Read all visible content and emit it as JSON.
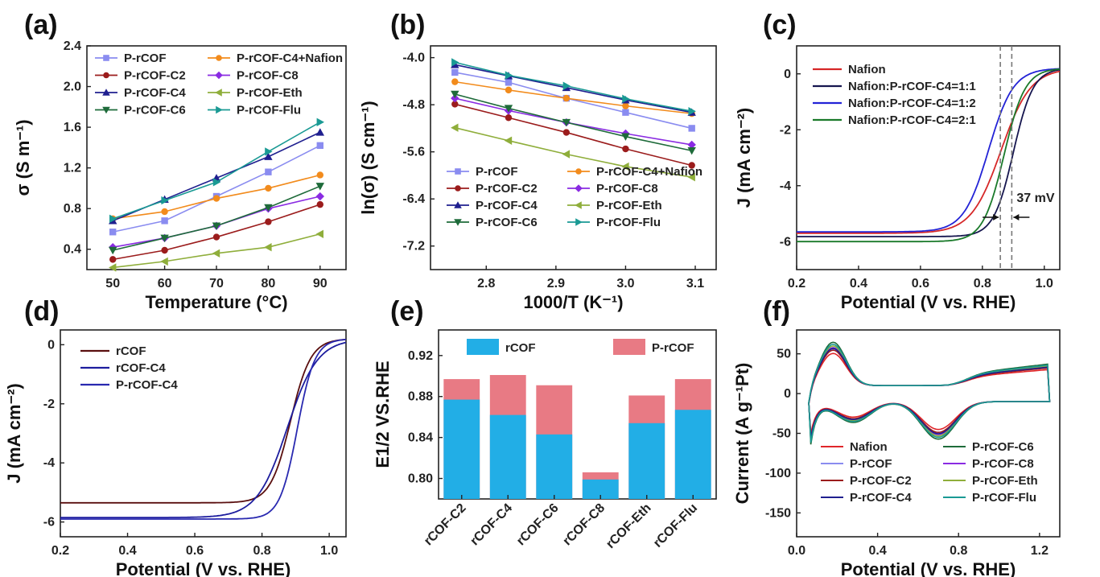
{
  "chart_data": [
    {
      "panel": "(a)",
      "type": "line",
      "xlabel": "Temperature (°C)",
      "ylabel": "σ (S m⁻¹)",
      "xlim": [
        45,
        95
      ],
      "ylim": [
        0.2,
        2.4
      ],
      "xticks": [
        50,
        60,
        70,
        80,
        90
      ],
      "yticks": [
        0.4,
        0.8,
        1.2,
        1.6,
        2.0,
        2.4
      ],
      "legend_columns": 2,
      "legend_position": "top-left",
      "x": [
        50,
        60,
        70,
        80,
        90
      ],
      "series": [
        {
          "name": "P-rCOF",
          "color": "#8a8cf0",
          "marker": "square",
          "values": [
            0.57,
            0.68,
            0.92,
            1.16,
            1.42
          ]
        },
        {
          "name": "P-rCOF-C4+Nafion",
          "color": "#f28b1c",
          "marker": "circle",
          "values": [
            0.7,
            0.77,
            0.9,
            1.0,
            1.13
          ]
        },
        {
          "name": "P-rCOF-C2",
          "color": "#9b1c1c",
          "marker": "circle",
          "values": [
            0.3,
            0.39,
            0.52,
            0.67,
            0.84
          ]
        },
        {
          "name": "P-rCOF-C8",
          "color": "#8a2be2",
          "marker": "diamond",
          "values": [
            0.42,
            0.51,
            0.63,
            0.8,
            0.92
          ]
        },
        {
          "name": "P-rCOF-C4",
          "color": "#1f1f8f",
          "marker": "triangle-up",
          "values": [
            0.68,
            0.89,
            1.1,
            1.31,
            1.55
          ]
        },
        {
          "name": "P-rCOF-Eth",
          "color": "#8fae3b",
          "marker": "triangle-left",
          "values": [
            0.22,
            0.28,
            0.36,
            0.42,
            0.55
          ]
        },
        {
          "name": "P-rCOF-C6",
          "color": "#1e6b3a",
          "marker": "triangle-down",
          "values": [
            0.39,
            0.51,
            0.63,
            0.81,
            1.02
          ]
        },
        {
          "name": "P-rCOF-Flu",
          "color": "#1a9a94",
          "marker": "triangle-right",
          "values": [
            0.7,
            0.88,
            1.06,
            1.36,
            1.65
          ]
        }
      ]
    },
    {
      "panel": "(b)",
      "type": "line",
      "xlabel": "1000/T (K⁻¹)",
      "ylabel": "ln(σ) (S cm⁻¹)",
      "xlim": [
        2.72,
        3.13
      ],
      "ylim": [
        -7.6,
        -3.8
      ],
      "xticks": [
        2.8,
        2.9,
        3.0,
        3.1
      ],
      "yticks": [
        -7.2,
        -6.4,
        -5.6,
        -4.8,
        -4.0
      ],
      "legend_columns": 2,
      "legend_position": "bottom",
      "x": [
        2.755,
        2.832,
        2.915,
        3.0,
        3.095
      ],
      "series": [
        {
          "name": "P-rCOF",
          "color": "#8a8cf0",
          "marker": "square",
          "values": [
            -4.25,
            -4.42,
            -4.69,
            -4.93,
            -5.2
          ]
        },
        {
          "name": "P-rCOF-C4+Nafion",
          "color": "#f28b1c",
          "marker": "circle",
          "values": [
            -4.41,
            -4.55,
            -4.69,
            -4.82,
            -4.95
          ]
        },
        {
          "name": "P-rCOF-C2",
          "color": "#9b1c1c",
          "marker": "circle",
          "values": [
            -4.79,
            -5.02,
            -5.27,
            -5.55,
            -5.83
          ]
        },
        {
          "name": "P-rCOF-C8",
          "color": "#8a2be2",
          "marker": "diamond",
          "values": [
            -4.69,
            -4.9,
            -5.1,
            -5.29,
            -5.48
          ]
        },
        {
          "name": "P-rCOF-C4",
          "color": "#1f1f8f",
          "marker": "triangle-up",
          "values": [
            -4.12,
            -4.31,
            -4.51,
            -4.72,
            -4.93
          ]
        },
        {
          "name": "P-rCOF-Eth",
          "color": "#8fae3b",
          "marker": "triangle-left",
          "values": [
            -5.19,
            -5.41,
            -5.64,
            -5.85,
            -6.03
          ]
        },
        {
          "name": "P-rCOF-C6",
          "color": "#1e6b3a",
          "marker": "triangle-down",
          "values": [
            -4.62,
            -4.86,
            -5.1,
            -5.34,
            -5.58
          ]
        },
        {
          "name": "P-rCOF-Flu",
          "color": "#1a9a94",
          "marker": "triangle-right",
          "values": [
            -4.08,
            -4.3,
            -4.48,
            -4.7,
            -4.91
          ]
        }
      ]
    },
    {
      "panel": "(c)",
      "type": "line",
      "xlabel": "Potential (V vs. RHE)",
      "ylabel": "J (mA cm⁻²)",
      "xlim": [
        0.2,
        1.05
      ],
      "ylim": [
        -7,
        1
      ],
      "xticks": [
        0.2,
        0.4,
        0.6,
        0.8,
        1.0
      ],
      "yticks": [
        -6,
        -4,
        -2,
        0
      ],
      "legend_position": "top-left",
      "annotation": "37 mV",
      "reference_lines_x": [
        0.858,
        0.895
      ],
      "series": [
        {
          "name": "Nafion",
          "color": "#d62728",
          "limiting": -5.9,
          "halfwave": 0.86,
          "width": 0.048
        },
        {
          "name": "Nafion:P-rCOF-C4=1:1",
          "color": "#16164f",
          "limiting": -6.02,
          "halfwave": 0.9,
          "width": 0.032
        },
        {
          "name": "Nafion:P-rCOF-C4=1:2",
          "color": "#2323d6",
          "limiting": -5.85,
          "halfwave": 0.82,
          "width": 0.04
        },
        {
          "name": "Nafion:P-rCOF-C4=2:1",
          "color": "#1a7a2a",
          "limiting": -6.2,
          "halfwave": 0.87,
          "width": 0.034
        }
      ]
    },
    {
      "panel": "(d)",
      "type": "line",
      "xlabel": "Potential (V vs. RHE)",
      "ylabel": "J (mA cm⁻²)",
      "xlim": [
        0.2,
        1.05
      ],
      "ylim": [
        -6.5,
        0.5
      ],
      "xticks": [
        0.2,
        0.4,
        0.6,
        0.8,
        1.0
      ],
      "yticks": [
        -6,
        -4,
        -2,
        0
      ],
      "legend_position": "top-left",
      "series": [
        {
          "name": "rCOF",
          "color": "#5a0f0f",
          "limiting": -5.55,
          "halfwave": 0.885,
          "width": 0.03
        },
        {
          "name": "rCOF-C4",
          "color": "#1d1d9e",
          "limiting": -6.05,
          "halfwave": 0.875,
          "width": 0.045
        },
        {
          "name": "P-rCOF-C4",
          "color": "#2929b0",
          "limiting": -6.1,
          "halfwave": 0.905,
          "width": 0.026
        }
      ]
    },
    {
      "panel": "(e)",
      "type": "bar",
      "ylabel": "E1/2 VS.RHE",
      "ylim": [
        0.78,
        0.945
      ],
      "yticks": [
        0.8,
        0.84,
        0.88,
        0.92
      ],
      "legend_position": "top",
      "categories": [
        "rCOF-C2",
        "rCOF-C4",
        "rCOF-C6",
        "rCOF-C8",
        "rCOF-Eth",
        "rCOF-Flu"
      ],
      "series": [
        {
          "name": "rCOF",
          "color": "#22aee6",
          "values": [
            0.877,
            0.862,
            0.843,
            0.799,
            0.854,
            0.867
          ]
        },
        {
          "name": "P-rCOF",
          "color": "#e87a84",
          "values": [
            0.897,
            0.901,
            0.891,
            0.806,
            0.881,
            0.897
          ]
        }
      ]
    },
    {
      "panel": "(f)",
      "type": "line",
      "xlabel": "Potential (V vs. RHE)",
      "ylabel": "Current (A g⁻¹Pt)",
      "xlim": [
        0.0,
        1.3
      ],
      "ylim": [
        -180,
        80
      ],
      "xticks": [
        0.0,
        0.4,
        0.8,
        1.2
      ],
      "yticks": [
        -150,
        -100,
        -50,
        0,
        50
      ],
      "legend_columns": 2,
      "legend_position": "bottom-left",
      "series": [
        {
          "name": "Nafion",
          "color": "#e0262a",
          "scale": 0.78
        },
        {
          "name": "P-rCOF-C6",
          "color": "#1e6b3a",
          "scale": 1.05
        },
        {
          "name": "P-rCOF",
          "color": "#8a8cf0",
          "scale": 0.88
        },
        {
          "name": "P-rCOF-C8",
          "color": "#8a2be2",
          "scale": 0.92
        },
        {
          "name": "P-rCOF-C2",
          "color": "#9b1c1c",
          "scale": 0.86
        },
        {
          "name": "P-rCOF-Eth",
          "color": "#8fae3b",
          "scale": 0.96
        },
        {
          "name": "P-rCOF-C4",
          "color": "#1f1f8f",
          "scale": 0.9
        },
        {
          "name": "P-rCOF-Flu",
          "color": "#1a9a94",
          "scale": 1.0
        }
      ]
    }
  ]
}
